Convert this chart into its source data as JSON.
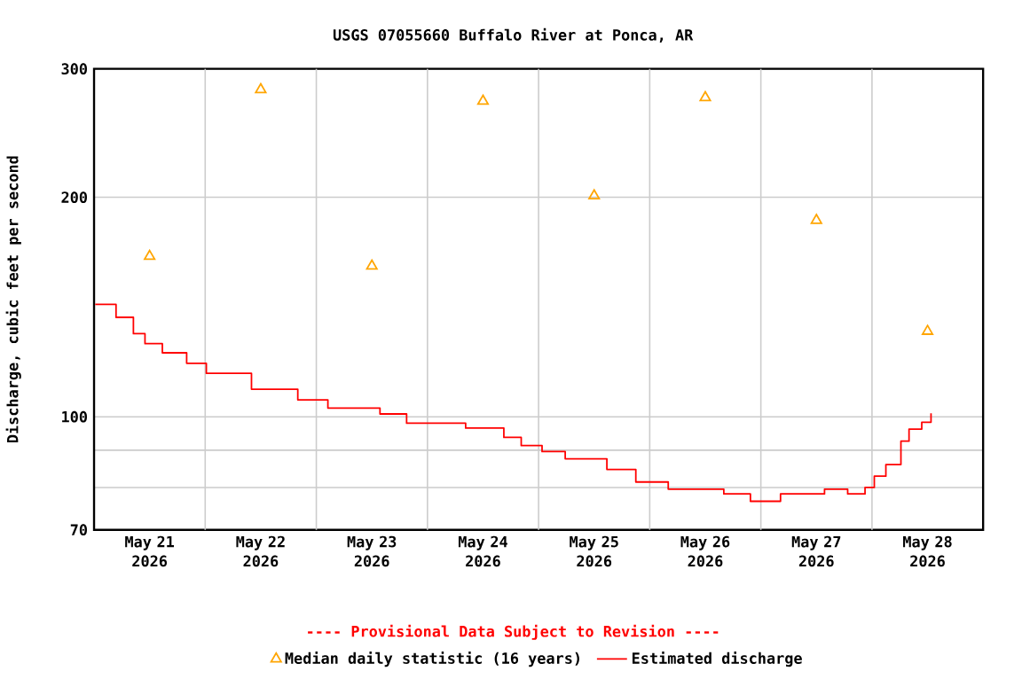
{
  "chart_data": {
    "type": "line",
    "title": "USGS 07055660 Buffalo River at Ponca, AR",
    "ylabel": "Discharge, cubic feet per second",
    "annotations": [
      "---- Provisional Data Subject to Revision ----"
    ],
    "log": "y",
    "grid": true,
    "legend": "bottom",
    "xlim": [
      "2026-05-21T00:00",
      "2026-05-29T00:00"
    ],
    "xticks": [
      {
        "value": "2026-05-21T12:00",
        "label": "May 21 2026"
      },
      {
        "value": "2026-05-22T00:00",
        "label": null
      },
      {
        "value": "2026-05-22T12:00",
        "label": "May 22 2026"
      },
      {
        "value": "2026-05-23T00:00",
        "label": null
      },
      {
        "value": "2026-05-23T12:00",
        "label": "May 23 2026"
      },
      {
        "value": "2026-05-24T00:00",
        "label": null
      },
      {
        "value": "2026-05-24T12:00",
        "label": "May 24 2026"
      },
      {
        "value": "2026-05-25T00:00",
        "label": null
      },
      {
        "value": "2026-05-25T12:00",
        "label": "May 25 2026"
      },
      {
        "value": "2026-05-26T00:00",
        "label": null
      },
      {
        "value": "2026-05-26T12:00",
        "label": "May 26 2026"
      },
      {
        "value": "2026-05-27T00:00",
        "label": null
      },
      {
        "value": "2026-05-27T12:00",
        "label": "May 27 2026"
      },
      {
        "value": "2026-05-28T00:00",
        "label": null
      },
      {
        "value": "2026-05-28T12:00",
        "label": "May 28 2026"
      }
    ],
    "ylim": [
      70,
      300
    ],
    "yticks": [
      70,
      {
        "value": 80,
        "label": null
      },
      {
        "value": 90,
        "label": null
      },
      100,
      200,
      300
    ],
    "series": [
      {
        "name": "Median daily statistic (16 years)",
        "type": "scatter",
        "marker": "triangle",
        "color": "#ffa500",
        "x": [
          "2026-05-21T12:00",
          "2026-05-22T12:00",
          "2026-05-23T12:00",
          "2026-05-24T12:00",
          "2026-05-25T12:00",
          "2026-05-26T12:00",
          "2026-05-27T12:00",
          "2026-05-28T12:00"
        ],
        "values": [
          166,
          281,
          161,
          271,
          201,
          274,
          186,
          131
        ]
      },
      {
        "name": "Estimated discharge",
        "type": "step",
        "marker": "none",
        "color": "#ff0000",
        "x": [
          "2026-05-21T00:15",
          "2026-05-21T04:45",
          "2026-05-21T08:30",
          "2026-05-21T11:00",
          "2026-05-21T14:45",
          "2026-05-21T20:00",
          "2026-05-22T00:15",
          "2026-05-22T10:00",
          "2026-05-22T20:00",
          "2026-05-23T02:30",
          "2026-05-23T13:45",
          "2026-05-23T19:30",
          "2026-05-24T08:15",
          "2026-05-24T16:30",
          "2026-05-24T20:15",
          "2026-05-25T00:45",
          "2026-05-25T05:45",
          "2026-05-25T14:45",
          "2026-05-25T21:00",
          "2026-05-26T04:00",
          "2026-05-26T16:00",
          "2026-05-26T21:45",
          "2026-05-27T04:15",
          "2026-05-27T13:45",
          "2026-05-27T18:45",
          "2026-05-27T22:30",
          "2026-05-28T00:30",
          "2026-05-28T03:00",
          "2026-05-28T06:15",
          "2026-05-28T08:00",
          "2026-05-28T10:45",
          "2026-05-28T12:45"
        ],
        "values": [
          142.6,
          136.9,
          130,
          126,
          122.4,
          118.4,
          114.7,
          109.1,
          105.5,
          102.8,
          100.9,
          98,
          96.5,
          93.7,
          91.3,
          89.6,
          87.6,
          84.7,
          81.4,
          79.6,
          78.4,
          76.6,
          78.4,
          79.6,
          78.4,
          80,
          82.9,
          86,
          92.6,
          96.2,
          98.3,
          101.1
        ]
      }
    ]
  }
}
